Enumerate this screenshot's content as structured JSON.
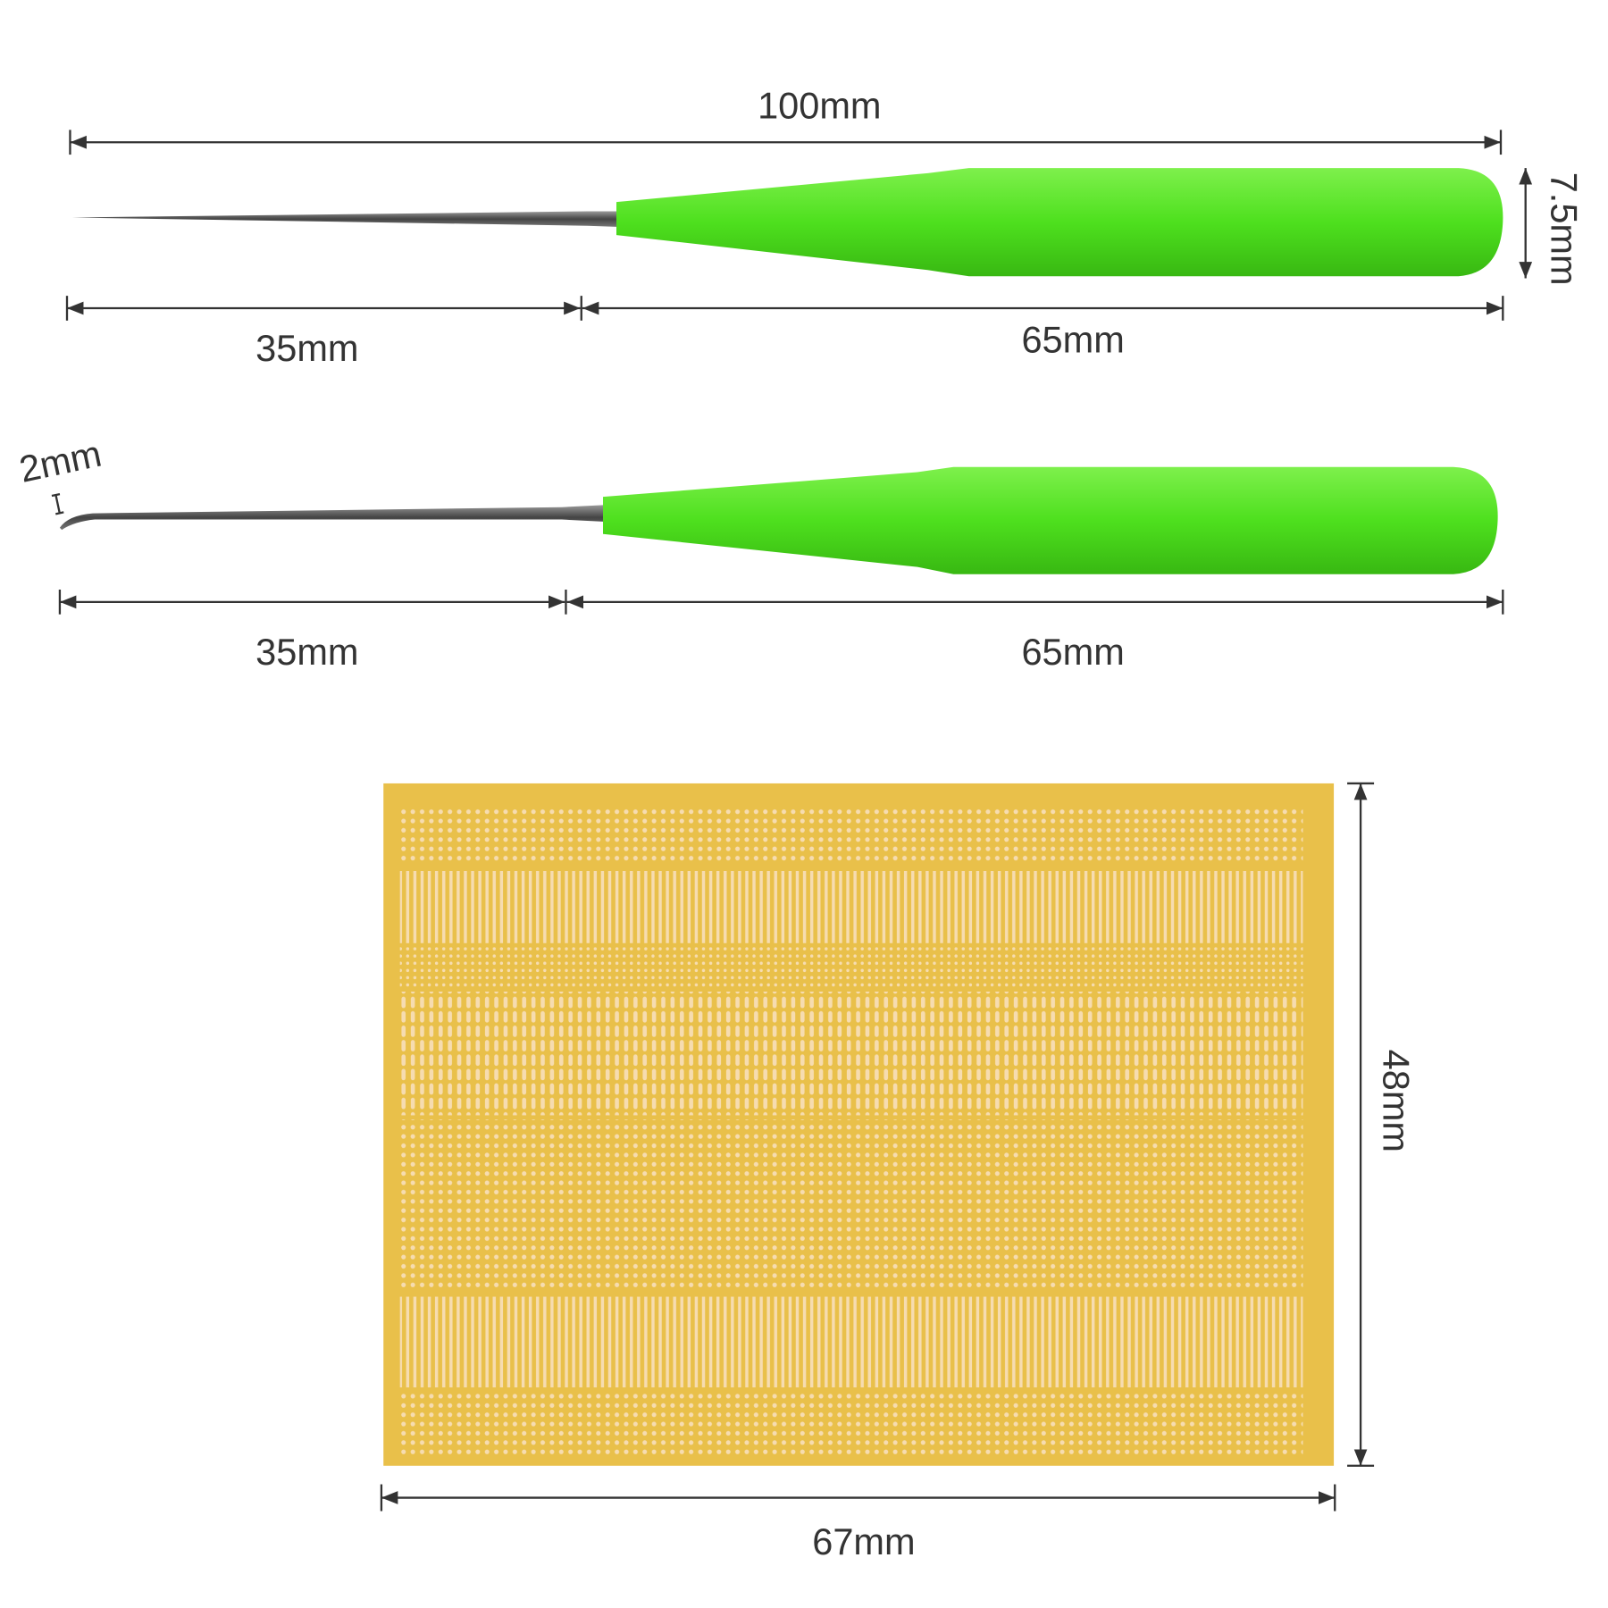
{
  "colors": {
    "handle": "#4ee01e",
    "handle_shade": "#3bc214",
    "pcb": "#e9c04a",
    "pad": "#f6dcb0",
    "line": "#333333"
  },
  "probe1": {
    "total_label": "100mm",
    "tip_label": "35mm",
    "handle_label": "65mm",
    "diameter_label": "7.5mm"
  },
  "probe2": {
    "hook_label": "2mm",
    "tip_label": "35mm",
    "handle_label": "65mm"
  },
  "board": {
    "width_label": "67mm",
    "height_label": "48mm"
  }
}
